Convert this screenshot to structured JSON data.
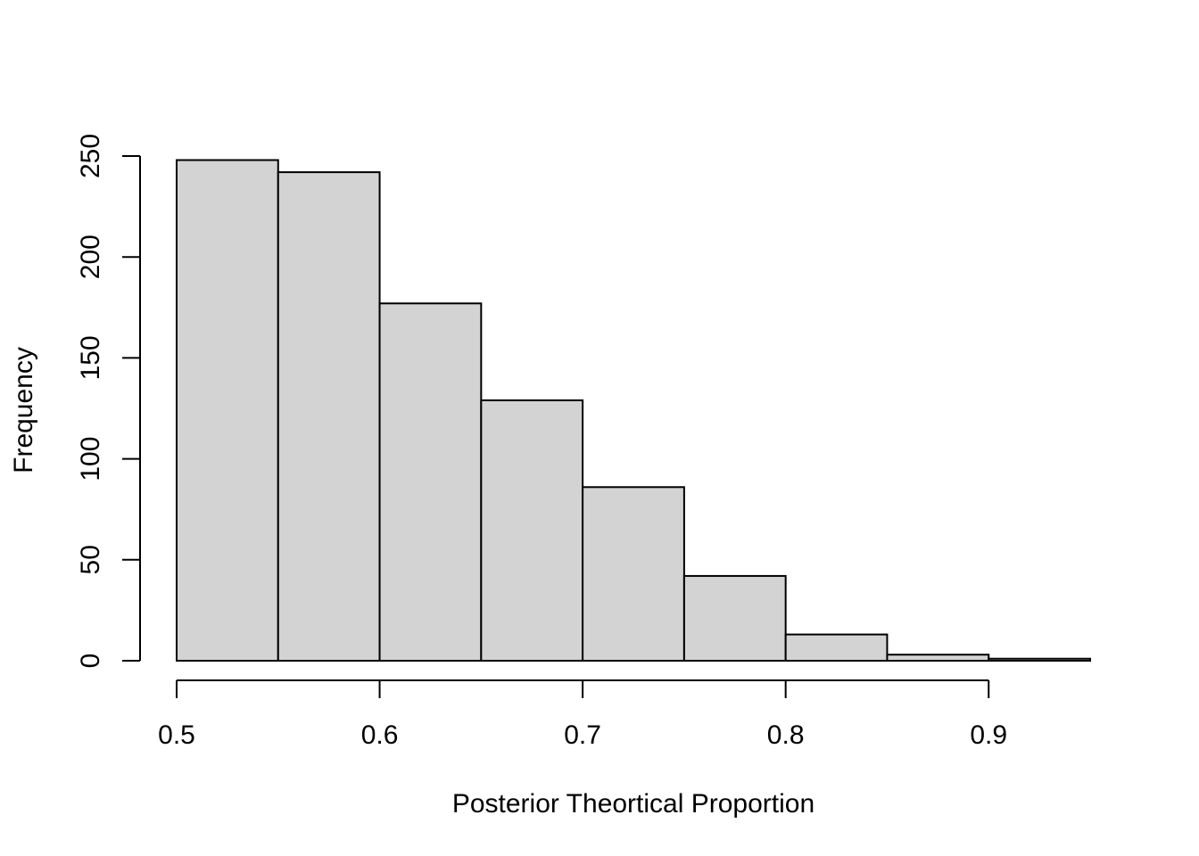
{
  "chart_data": {
    "type": "bar",
    "title": "",
    "xlabel": "Posterior Theortical Proportion",
    "ylabel": "Frequency",
    "bins": [
      {
        "from": 0.5,
        "to": 0.55,
        "count": 248
      },
      {
        "from": 0.55,
        "to": 0.6,
        "count": 242
      },
      {
        "from": 0.6,
        "to": 0.65,
        "count": 177
      },
      {
        "from": 0.65,
        "to": 0.7,
        "count": 129
      },
      {
        "from": 0.7,
        "to": 0.75,
        "count": 86
      },
      {
        "from": 0.75,
        "to": 0.8,
        "count": 42
      },
      {
        "from": 0.8,
        "to": 0.85,
        "count": 13
      },
      {
        "from": 0.85,
        "to": 0.9,
        "count": 3
      },
      {
        "from": 0.9,
        "to": 0.95,
        "count": 1
      }
    ],
    "x_ticks": [
      "0.5",
      "0.6",
      "0.7",
      "0.8",
      "0.9"
    ],
    "x_tick_values": [
      0.5,
      0.6,
      0.7,
      0.8,
      0.9
    ],
    "y_ticks": [
      "0",
      "50",
      "100",
      "150",
      "200",
      "250"
    ],
    "y_tick_values": [
      0,
      50,
      100,
      150,
      200,
      250
    ],
    "xlim": [
      0.5,
      0.95
    ],
    "ylim": [
      0,
      250
    ],
    "bar_color": "#d3d3d3",
    "grid": false,
    "legend": "none"
  }
}
